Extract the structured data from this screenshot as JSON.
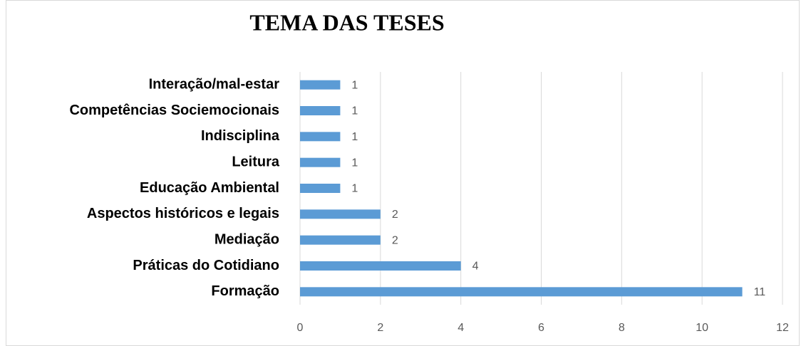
{
  "chart_data": {
    "type": "hbar",
    "title": "TEMA DAS TESES",
    "categories": [
      "Interação/mal-estar",
      "Competências Sociemocionais",
      "Indisciplina",
      "Leitura",
      "Educação Ambiental",
      "Aspectos históricos e legais",
      "Mediação",
      "Práticas do Cotidiano",
      "Formação"
    ],
    "values": [
      1,
      1,
      1,
      1,
      1,
      2,
      2,
      4,
      11
    ],
    "color": "#5b9bd5",
    "xlim": [
      0,
      12
    ],
    "xticks": [
      0,
      2,
      4,
      6,
      8,
      10,
      12
    ],
    "grid": true
  }
}
